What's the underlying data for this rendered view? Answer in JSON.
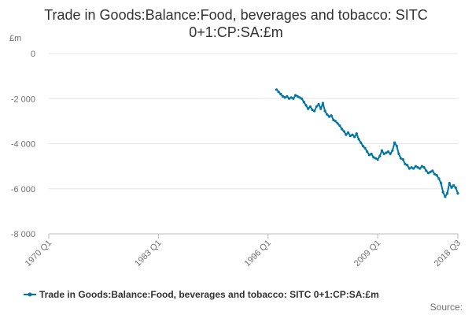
{
  "chart_data": {
    "type": "line",
    "title_line1": "Trade in Goods:Balance:Food, beverages and tobacco: SITC",
    "title_line2": "0+1:CP:SA:£m",
    "ylabel": "£m",
    "ylim": [
      -8000,
      0
    ],
    "yticks": [
      0,
      -2000,
      -4000,
      -6000,
      -8000
    ],
    "ytick_labels": [
      "0",
      "-2 000",
      "-4 000",
      "-6 000",
      "-8 000"
    ],
    "xlim": [
      1970.0,
      2018.5
    ],
    "xticks": [
      1970.0,
      1983.0,
      1996.0,
      2009.0,
      2018.5
    ],
    "xtick_labels": [
      "1970 Q1",
      "1983 Q1",
      "1996 Q1",
      "2009 Q1",
      "2018 Q3"
    ],
    "grid": "horizontal",
    "legend_position": "bottom",
    "source": "Source:",
    "series": [
      {
        "name": "Trade in Goods:Balance:Food, beverages and tobacco: SITC 0+1:CP:SA:£m",
        "color": "#0075a3",
        "points": [
          [
            1997.0,
            -1600
          ],
          [
            1997.25,
            -1700
          ],
          [
            1997.5,
            -1800
          ],
          [
            1997.75,
            -1900
          ],
          [
            1998.0,
            -1950
          ],
          [
            1998.25,
            -1900
          ],
          [
            1998.5,
            -2000
          ],
          [
            1998.75,
            -1950
          ],
          [
            1999.0,
            -2000
          ],
          [
            1999.25,
            -1850
          ],
          [
            1999.5,
            -1900
          ],
          [
            1999.75,
            -1950
          ],
          [
            2000.0,
            -2000
          ],
          [
            2000.25,
            -2150
          ],
          [
            2000.5,
            -2300
          ],
          [
            2000.75,
            -2450
          ],
          [
            2001.0,
            -2350
          ],
          [
            2001.25,
            -2500
          ],
          [
            2001.5,
            -2550
          ],
          [
            2001.75,
            -2350
          ],
          [
            2002.0,
            -2250
          ],
          [
            2002.25,
            -2450
          ],
          [
            2002.5,
            -2200
          ],
          [
            2002.75,
            -2550
          ],
          [
            2003.0,
            -2700
          ],
          [
            2003.25,
            -2800
          ],
          [
            2003.5,
            -2750
          ],
          [
            2003.75,
            -2950
          ],
          [
            2004.0,
            -3000
          ],
          [
            2004.25,
            -3100
          ],
          [
            2004.5,
            -3200
          ],
          [
            2004.75,
            -3350
          ],
          [
            2005.0,
            -3450
          ],
          [
            2005.25,
            -3600
          ],
          [
            2005.5,
            -3500
          ],
          [
            2005.75,
            -3650
          ],
          [
            2006.0,
            -3600
          ],
          [
            2006.25,
            -3700
          ],
          [
            2006.5,
            -3550
          ],
          [
            2006.75,
            -3800
          ],
          [
            2007.0,
            -3950
          ],
          [
            2007.25,
            -4100
          ],
          [
            2007.5,
            -4200
          ],
          [
            2007.75,
            -4350
          ],
          [
            2008.0,
            -4500
          ],
          [
            2008.25,
            -4450
          ],
          [
            2008.5,
            -4600
          ],
          [
            2008.75,
            -4650
          ],
          [
            2009.0,
            -4700
          ],
          [
            2009.25,
            -4550
          ],
          [
            2009.5,
            -4300
          ],
          [
            2009.75,
            -4450
          ],
          [
            2010.0,
            -4400
          ],
          [
            2010.25,
            -4350
          ],
          [
            2010.5,
            -4450
          ],
          [
            2010.75,
            -4300
          ],
          [
            2011.0,
            -3950
          ],
          [
            2011.25,
            -4100
          ],
          [
            2011.5,
            -4450
          ],
          [
            2011.75,
            -4650
          ],
          [
            2012.0,
            -4700
          ],
          [
            2012.25,
            -4900
          ],
          [
            2012.5,
            -4950
          ],
          [
            2012.75,
            -5100
          ],
          [
            2013.0,
            -5050
          ],
          [
            2013.25,
            -5100
          ],
          [
            2013.5,
            -5000
          ],
          [
            2013.75,
            -5050
          ],
          [
            2014.0,
            -5100
          ],
          [
            2014.25,
            -5000
          ],
          [
            2014.5,
            -5050
          ],
          [
            2014.75,
            -5200
          ],
          [
            2015.0,
            -5300
          ],
          [
            2015.25,
            -5250
          ],
          [
            2015.5,
            -5200
          ],
          [
            2015.75,
            -5350
          ],
          [
            2016.0,
            -5400
          ],
          [
            2016.25,
            -5550
          ],
          [
            2016.5,
            -5750
          ],
          [
            2016.75,
            -6150
          ],
          [
            2017.0,
            -6350
          ],
          [
            2017.25,
            -6200
          ],
          [
            2017.5,
            -5750
          ],
          [
            2017.75,
            -5950
          ],
          [
            2018.0,
            -5850
          ],
          [
            2018.25,
            -5950
          ],
          [
            2018.5,
            -6200
          ]
        ]
      }
    ]
  }
}
